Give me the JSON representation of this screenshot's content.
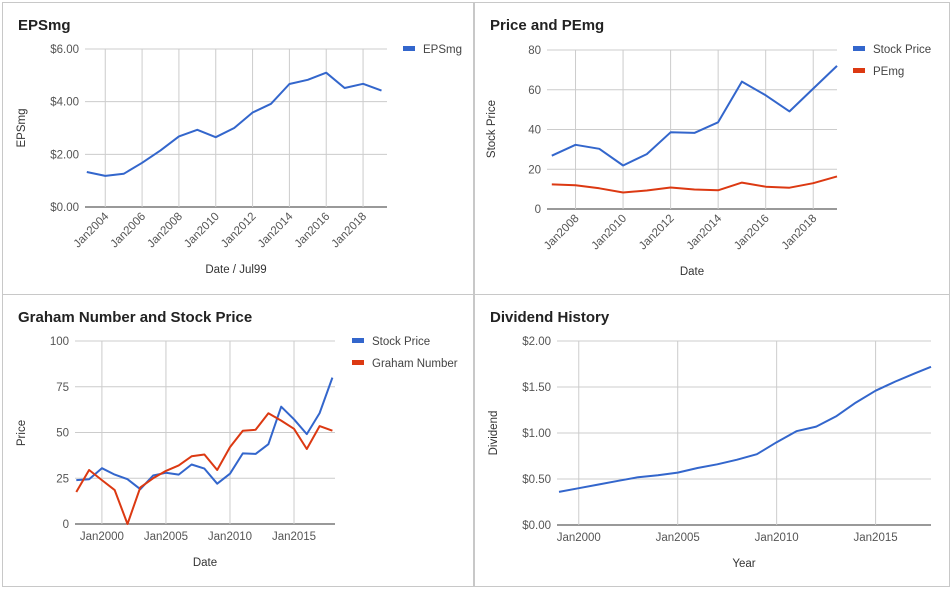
{
  "chart_data": [
    {
      "type": "line",
      "title": "EPSmg",
      "xlabel": "Date / Jul99",
      "ylabel": "EPSmg",
      "y_tick_labels": [
        "$0.00",
        "$2.00",
        "$4.00",
        "$6.00"
      ],
      "ylim": [
        0,
        6
      ],
      "x_tick_labels": [
        "Jan2004",
        "Jan2006",
        "Jan2008",
        "Jan2010",
        "Jan2012",
        "Jan2014",
        "Jan2016",
        "Jan2018"
      ],
      "x_tick_years": [
        2004,
        2006,
        2008,
        2010,
        2012,
        2014,
        2016,
        2018
      ],
      "xlim": [
        2002.9,
        2019.3
      ],
      "x_label_rotation": -45,
      "legend_position": "top-right",
      "series": [
        {
          "name": "EPSmg",
          "color": "#3366cc",
          "x": [
            2003.0,
            2004.0,
            2005.0,
            2006.0,
            2007.0,
            2008.0,
            2009.0,
            2010.0,
            2011.0,
            2012.0,
            2013.0,
            2014.0,
            2015.0,
            2016.0,
            2017.0,
            2018.0,
            2019.0
          ],
          "y": [
            1.33,
            1.18,
            1.26,
            1.68,
            2.15,
            2.68,
            2.93,
            2.65,
            3.0,
            3.59,
            3.92,
            4.67,
            4.83,
            5.1,
            4.52,
            4.68,
            4.42
          ]
        }
      ]
    },
    {
      "type": "line",
      "title": "Price and PEmg",
      "xlabel": "Date",
      "ylabel": "Stock Price",
      "y_tick_labels": [
        "0",
        "20",
        "40",
        "60",
        "80"
      ],
      "ylim": [
        0,
        80
      ],
      "x_tick_labels": [
        "Jan2008",
        "Jan2010",
        "Jan2012",
        "Jan2014",
        "Jan2016",
        "Jan2018"
      ],
      "x_tick_years": [
        2008,
        2010,
        2012,
        2014,
        2016,
        2018
      ],
      "xlim": [
        2006.8,
        2019.0
      ],
      "x_label_rotation": -45,
      "legend_position": "top-right",
      "series": [
        {
          "name": "Stock Price",
          "color": "#3366cc",
          "x": [
            2007.0,
            2008.0,
            2009.0,
            2010.0,
            2011.0,
            2012.0,
            2013.0,
            2014.0,
            2015.0,
            2016.0,
            2017.0,
            2018.0,
            2019.0
          ],
          "y": [
            26.8,
            32.3,
            30.3,
            21.9,
            27.6,
            38.6,
            38.3,
            43.6,
            64.1,
            57.2,
            49.1,
            60.6,
            72.0
          ]
        },
        {
          "name": "PEmg",
          "color": "#dc3912",
          "x": [
            2007.0,
            2008.0,
            2009.0,
            2010.0,
            2011.0,
            2012.0,
            2013.0,
            2014.0,
            2015.0,
            2016.0,
            2017.0,
            2018.0,
            2019.0
          ],
          "y": [
            12.4,
            12.0,
            10.4,
            8.3,
            9.3,
            10.8,
            9.8,
            9.4,
            13.3,
            11.2,
            10.7,
            13.0,
            16.4
          ]
        }
      ]
    },
    {
      "type": "line",
      "title": "Graham Number and Stock Price",
      "xlabel": "Date",
      "ylabel": "Price",
      "y_tick_labels": [
        "0",
        "25",
        "50",
        "75",
        "100"
      ],
      "ylim": [
        0,
        100
      ],
      "x_tick_labels": [
        "Jan2000",
        "Jan2005",
        "Jan2010",
        "Jan2015"
      ],
      "x_tick_years": [
        2000,
        2005,
        2010,
        2015
      ],
      "xlim": [
        1997.9,
        2018.2
      ],
      "x_label_rotation": 0,
      "legend_position": "top-right",
      "series": [
        {
          "name": "Stock Price",
          "color": "#3366cc",
          "x": [
            1998,
            1999,
            2000,
            2001,
            2002,
            2003,
            2004,
            2005,
            2006,
            2007,
            2008,
            2009,
            2010,
            2011,
            2012,
            2013,
            2014,
            2015,
            2016,
            2017,
            2018
          ],
          "y": [
            24,
            24.5,
            30.5,
            27,
            24.5,
            19,
            26.5,
            28,
            27,
            32.5,
            30.3,
            22,
            27.5,
            38.6,
            38.3,
            43.6,
            64.1,
            57.2,
            49.1,
            60.6,
            80
          ]
        },
        {
          "name": "Graham Number",
          "color": "#dc3912",
          "x": [
            1998,
            1999,
            2000,
            2001,
            2002,
            2003,
            2004,
            2005,
            2006,
            2007,
            2008,
            2009,
            2010,
            2011,
            2012,
            2013,
            2014,
            2015,
            2016,
            2017,
            2018
          ],
          "y": [
            17.5,
            29.5,
            24,
            18.5,
            0,
            20,
            25,
            29,
            32,
            37,
            38,
            29.5,
            42,
            51,
            51.5,
            60.5,
            56.5,
            52,
            41,
            53.5,
            51
          ]
        }
      ]
    },
    {
      "type": "line",
      "title": "Dividend History",
      "xlabel": "Year",
      "ylabel": "Dividend",
      "y_tick_labels": [
        "$0.00",
        "$0.50",
        "$1.00",
        "$1.50",
        "$2.00"
      ],
      "ylim": [
        0,
        2
      ],
      "x_tick_labels": [
        "Jan2000",
        "Jan2005",
        "Jan2010",
        "Jan2015"
      ],
      "x_tick_years": [
        2000,
        2005,
        2010,
        2015
      ],
      "xlim": [
        1998.9,
        2017.8
      ],
      "x_label_rotation": 0,
      "legend_position": "none",
      "series": [
        {
          "name": "",
          "color": "#3366cc",
          "x": [
            1999,
            2000,
            2001,
            2002,
            2003,
            2004,
            2005,
            2006,
            2007,
            2008,
            2009,
            2010,
            2011,
            2012,
            2013,
            2014,
            2015,
            2016,
            2017,
            2017.8
          ],
          "y": [
            0.36,
            0.4,
            0.44,
            0.48,
            0.52,
            0.54,
            0.57,
            0.62,
            0.66,
            0.71,
            0.77,
            0.9,
            1.02,
            1.07,
            1.18,
            1.33,
            1.46,
            1.56,
            1.65,
            1.72
          ]
        }
      ]
    }
  ]
}
